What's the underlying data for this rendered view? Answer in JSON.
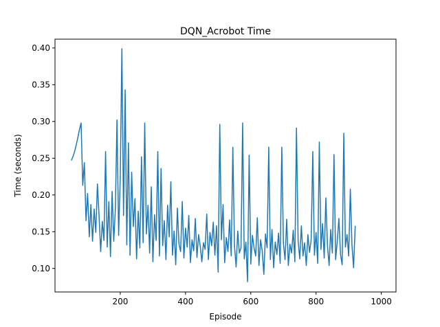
{
  "chart_data": {
    "type": "line",
    "title": "DQN_Acrobot Time",
    "xlabel": "Episode",
    "ylabel": "Time (seconds)",
    "xlim": [
      0,
      1045
    ],
    "ylim": [
      0.068,
      0.412
    ],
    "x_ticks": [
      200,
      400,
      600,
      800,
      1000
    ],
    "y_ticks": [
      0.1,
      0.15,
      0.2,
      0.25,
      0.3,
      0.35,
      0.4
    ],
    "grid": false,
    "legend": "none",
    "series_color": "#1f77b4",
    "series": [
      {
        "name": "",
        "x_start": 50,
        "x_step": 5,
        "values": [
          0.247,
          0.252,
          0.259,
          0.268,
          0.278,
          0.289,
          0.298,
          0.213,
          0.244,
          0.165,
          0.202,
          0.143,
          0.187,
          0.137,
          0.181,
          0.149,
          0.215,
          0.172,
          0.123,
          0.164,
          0.138,
          0.259,
          0.129,
          0.191,
          0.116,
          0.205,
          0.137,
          0.181,
          0.302,
          0.145,
          0.224,
          0.399,
          0.172,
          0.343,
          0.132,
          0.271,
          0.118,
          0.231,
          0.157,
          0.195,
          0.113,
          0.178,
          0.128,
          0.252,
          0.135,
          0.298,
          0.147,
          0.186,
          0.121,
          0.211,
          0.109,
          0.173,
          0.138,
          0.259,
          0.117,
          0.236,
          0.131,
          0.165,
          0.112,
          0.186,
          0.143,
          0.218,
          0.118,
          0.151,
          0.105,
          0.182,
          0.133,
          0.123,
          0.191,
          0.114,
          0.155,
          0.129,
          0.172,
          0.108,
          0.139,
          0.124,
          0.168,
          0.115,
          0.146,
          0.131,
          0.109,
          0.135,
          0.126,
          0.174,
          0.112,
          0.149,
          0.131,
          0.163,
          0.118,
          0.158,
          0.095,
          0.296,
          0.139,
          0.187,
          0.108,
          0.142,
          0.123,
          0.166,
          0.117,
          0.265,
          0.131,
          0.102,
          0.151,
          0.121,
          0.128,
          0.298,
          0.113,
          0.136,
          0.082,
          0.254,
          0.106,
          0.145,
          0.128,
          0.117,
          0.169,
          0.104,
          0.139,
          0.124,
          0.092,
          0.147,
          0.128,
          0.265,
          0.112,
          0.153,
          0.101,
          0.136,
          0.119,
          0.148,
          0.107,
          0.265,
          0.134,
          0.112,
          0.167,
          0.104,
          0.133,
          0.121,
          0.152,
          0.109,
          0.291,
          0.138,
          0.113,
          0.158,
          0.117,
          0.135,
          0.104,
          0.146,
          0.122,
          0.139,
          0.259,
          0.118,
          0.149,
          0.107,
          0.272,
          0.126,
          0.161,
          0.114,
          0.196,
          0.131,
          0.104,
          0.153,
          0.121,
          0.255,
          0.112,
          0.137,
          0.168,
          0.119,
          0.105,
          0.284,
          0.129,
          0.146,
          0.117,
          0.208,
          0.132,
          0.101,
          0.158
        ]
      }
    ]
  }
}
